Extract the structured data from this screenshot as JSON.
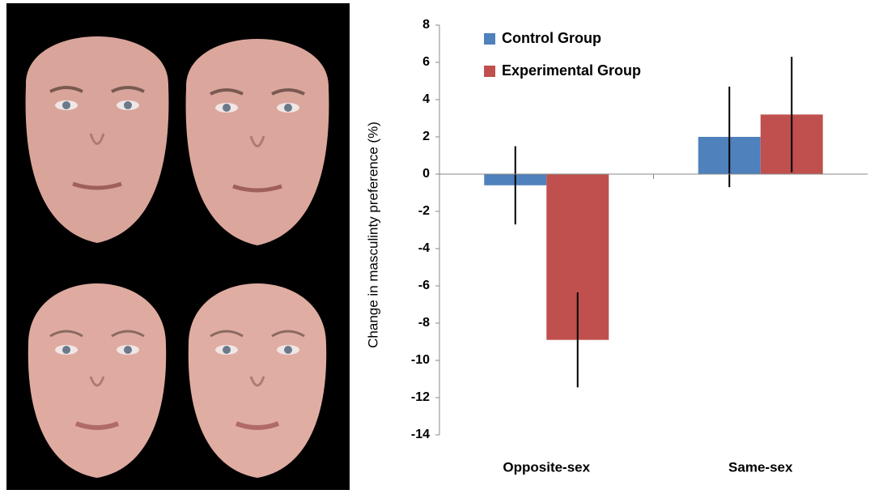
{
  "chart_data": {
    "type": "bar",
    "y_label": "Change in masculinty preference (%)",
    "categories": [
      "Opposite-sex",
      "Same-sex"
    ],
    "series": [
      {
        "name": "Control Group",
        "color": "#4f81bd",
        "values": [
          -0.6,
          2.0
        ],
        "errors": [
          2.1,
          2.7
        ]
      },
      {
        "name": "Experimental Group",
        "color": "#c0504d",
        "values": [
          -8.9,
          3.2
        ],
        "errors": [
          2.55,
          3.1
        ]
      }
    ],
    "ylim": [
      -14,
      8
    ],
    "yticks": [
      -14,
      -12,
      -10,
      -8,
      -6,
      -4,
      -2,
      0,
      2,
      4,
      6,
      8
    ]
  }
}
